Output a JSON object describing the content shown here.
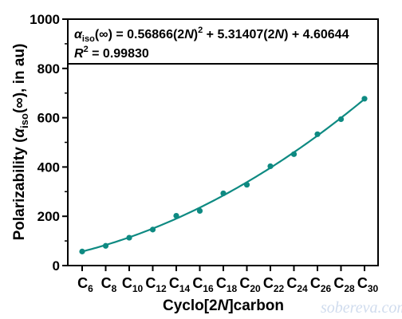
{
  "chart_data": {
    "type": "scatter",
    "x_categories": [
      {
        "base": "C",
        "sub": "6"
      },
      {
        "base": "C",
        "sub": "8"
      },
      {
        "base": "C",
        "sub": "10"
      },
      {
        "base": "C",
        "sub": "12"
      },
      {
        "base": "C",
        "sub": "14"
      },
      {
        "base": "C",
        "sub": "16"
      },
      {
        "base": "C",
        "sub": "18"
      },
      {
        "base": "C",
        "sub": "20"
      },
      {
        "base": "C",
        "sub": "22"
      },
      {
        "base": "C",
        "sub": "24"
      },
      {
        "base": "C",
        "sub": "26"
      },
      {
        "base": "C",
        "sub": "28"
      },
      {
        "base": "C",
        "sub": "30"
      }
    ],
    "x": [
      6,
      8,
      10,
      12,
      14,
      16,
      18,
      20,
      22,
      24,
      26,
      28,
      30
    ],
    "values": [
      57,
      80,
      113,
      146,
      202,
      222,
      293,
      328,
      403,
      452,
      533,
      594,
      677
    ],
    "fit": {
      "a": 0.56866,
      "b": 5.31407,
      "c": 4.60644,
      "x_range": [
        6,
        30
      ]
    },
    "ylim": [
      0,
      1000
    ],
    "y_ticks": [
      "0",
      "200",
      "400",
      "600",
      "800",
      "1000"
    ],
    "xlabel": {
      "prefix": "Cyclo[2",
      "var": "N",
      "suffix": "]carbon"
    },
    "ylabel": {
      "prefix": "Polarizability (",
      "greek": "α",
      "sub": "iso",
      "suffix": "(∞), in au)"
    },
    "annotation": {
      "line1": {
        "greek": "α",
        "sub": "iso",
        "a": "(∞) = 0.56866(2",
        "n1": "N",
        "b": ")",
        "sup": "2",
        "c": " + 5.31407(2",
        "n2": "N",
        "d": ") + 4.60644"
      },
      "line2": {
        "r": "R",
        "sup": "2",
        "rest": " = 0.99830"
      }
    },
    "grid": false,
    "color": "#0e8a82"
  },
  "watermark": "sobereva.com"
}
